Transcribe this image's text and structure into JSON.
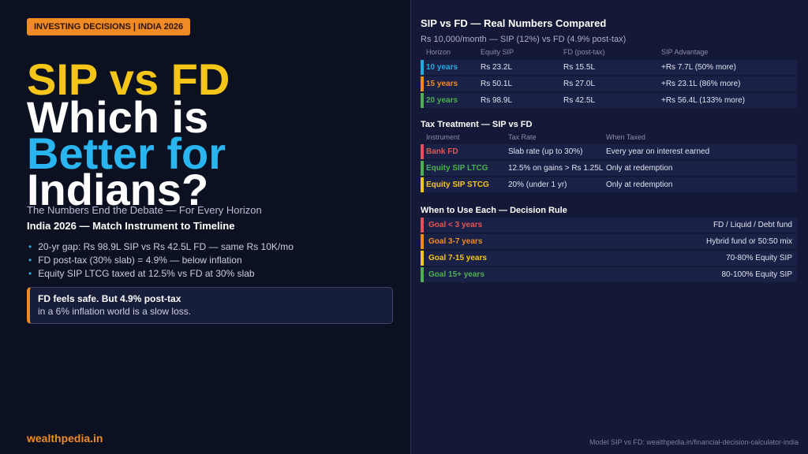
{
  "badge": "INVESTING DECISIONS | INDIA 2026",
  "title": {
    "line1": "SIP vs FD",
    "line2": "Which is",
    "line3": "Better for",
    "line4": "Indians?"
  },
  "subtitle": "The Numbers End the Debate — For Every Horizon",
  "tagline": "India 2026 — Match Instrument to Timeline",
  "bullets": [
    "20-yr gap: Rs 98.9L SIP vs Rs 42.5L FD — same Rs 10K/mo",
    "FD post-tax (30% slab) = 4.9% — below inflation",
    "Equity SIP LTCG taxed at 12.5% vs FD at 30% slab"
  ],
  "callout": {
    "line1": "FD feels safe. But 4.9% post-tax",
    "line2": "in a 6% inflation world is a slow loss."
  },
  "brand": "wealthpedia.in",
  "compare": {
    "title": "SIP vs FD — Real Numbers Compared",
    "subtitle": "Rs 10,000/month — SIP (12%) vs FD (4.9% post-tax)",
    "headers": [
      "Horizon",
      "Equity SIP",
      "FD (post-tax)",
      "SIP Advantage"
    ],
    "rows": [
      [
        "10 years",
        "Rs 23.2L",
        "Rs 15.5L",
        "+Rs 7.7L (50% more)"
      ],
      [
        "15 years",
        "Rs 50.1L",
        "Rs 27.0L",
        "+Rs 23.1L (86% more)"
      ],
      [
        "20 years",
        "Rs 98.9L",
        "Rs 42.5L",
        "+Rs 56.4L (133% more)"
      ]
    ]
  },
  "tax": {
    "title": "Tax Treatment — SIP vs FD",
    "headers": [
      "Instrument",
      "Tax Rate",
      "When Taxed"
    ],
    "rows": [
      [
        "Bank FD",
        "Slab rate (up to 30%)",
        "Every year on interest earned"
      ],
      [
        "Equity SIP LTCG",
        "12.5% on gains > Rs 1.25L",
        "Only at redemption"
      ],
      [
        "Equity SIP STCG",
        "20% (under 1 yr)",
        "Only at redemption"
      ]
    ]
  },
  "decision": {
    "title": "When to Use Each — Decision Rule",
    "rows": [
      [
        "Goal < 3 years",
        "FD / Liquid / Debt fund"
      ],
      [
        "Goal 3-7 years",
        "Hybrid fund or 50:50 mix"
      ],
      [
        "Goal 7-15 years",
        "70-80% Equity SIP"
      ],
      [
        "Goal 15+ years",
        "80-100% Equity SIP"
      ]
    ]
  },
  "footer": "Model SIP vs FD: wealthpedia.in/financial-decision-calculator-india"
}
